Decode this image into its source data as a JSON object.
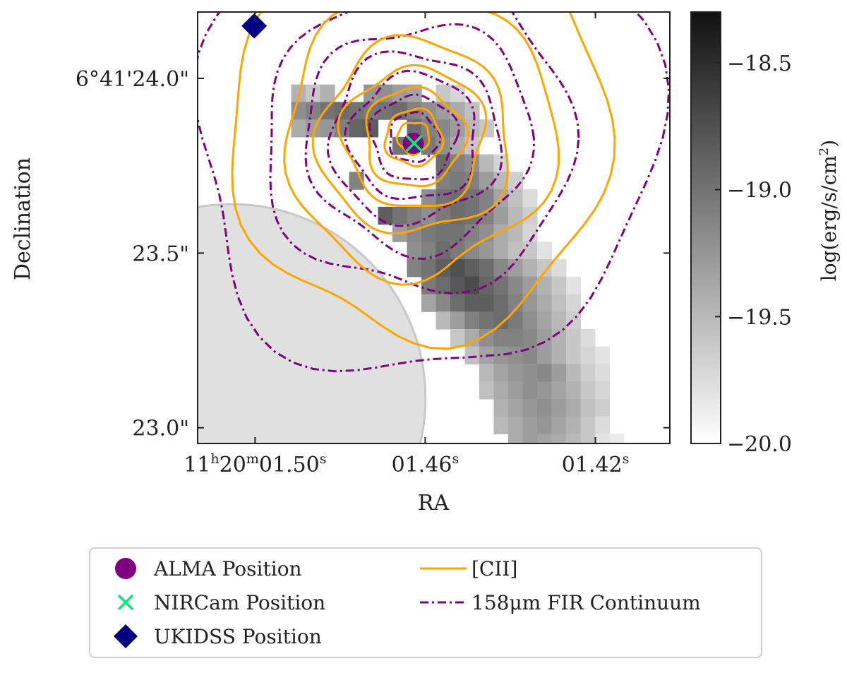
{
  "chart_data": {
    "type": "heatmap",
    "description_axes": {
      "xlabel": "RA",
      "ylabel": "Declination",
      "x_ticks": [
        {
          "value": 1.5,
          "prefix": "11",
          "h": "h",
          "mid": "20",
          "m": "m",
          "main": "01.50",
          "s": "s"
        },
        {
          "value": 1.46,
          "prefix": "",
          "h": "",
          "mid": "",
          "m": "",
          "main": "01.46",
          "s": "s"
        },
        {
          "value": 1.42,
          "prefix": "",
          "h": "",
          "mid": "",
          "m": "",
          "main": "01.42",
          "s": "s"
        }
      ],
      "y_ticks": [
        {
          "value": 24.0,
          "label": "6°41'24.0\""
        },
        {
          "value": 23.5,
          "label": "23.5\""
        },
        {
          "value": 23.0,
          "label": "23.0\""
        }
      ],
      "xlim": [
        1.5135,
        1.4025
      ],
      "ylim": [
        22.955,
        24.19
      ]
    },
    "colorbar": {
      "label_main": "log(erg/s/cm",
      "label_sup": "2",
      "label_end": ")",
      "range": [
        -20.0,
        -18.3
      ],
      "ticks": [
        {
          "value": -18.5,
          "label": "−18.5"
        },
        {
          "value": -19.0,
          "label": "−19.0"
        },
        {
          "value": -19.5,
          "label": "−19.5"
        },
        {
          "value": -20.0,
          "label": "−20.0"
        }
      ],
      "cmap": "gray_r"
    },
    "pixel_grid": {
      "x0": 1.4915,
      "y0": 23.9825,
      "dx": -0.0034,
      "dy": -0.05,
      "note_units": "RA seconds offset and Dec arcsec"
    },
    "pixels": [
      [
        0,
        0,
        -19.45
      ],
      [
        1,
        0,
        -19.6
      ],
      [
        2,
        0,
        -19.45
      ],
      [
        5,
        0,
        -19.25
      ],
      [
        6,
        0,
        -19.2
      ],
      [
        7,
        0,
        -19.3
      ],
      [
        8,
        0,
        -19.35
      ],
      [
        10,
        0,
        -19.6
      ],
      [
        11,
        0,
        -19.7
      ],
      [
        0,
        1,
        -19.2
      ],
      [
        1,
        1,
        -19.1
      ],
      [
        2,
        1,
        -19.0
      ],
      [
        3,
        1,
        -18.95
      ],
      [
        4,
        1,
        -19.0
      ],
      [
        5,
        1,
        -19.05
      ],
      [
        6,
        1,
        -19.0
      ],
      [
        7,
        1,
        -18.95
      ],
      [
        8,
        1,
        -19.1
      ],
      [
        9,
        1,
        -19.2
      ],
      [
        10,
        1,
        -19.3
      ],
      [
        11,
        1,
        -19.4
      ],
      [
        12,
        1,
        -19.55
      ],
      [
        0,
        2,
        -19.4
      ],
      [
        1,
        2,
        -19.3
      ],
      [
        2,
        2,
        -19.25
      ],
      [
        3,
        2,
        -19.1
      ],
      [
        4,
        2,
        -18.9
      ],
      [
        5,
        2,
        -18.85
      ],
      [
        8,
        2,
        -18.95
      ],
      [
        9,
        2,
        -19.1
      ],
      [
        10,
        2,
        -19.15
      ],
      [
        11,
        2,
        -19.3
      ],
      [
        12,
        2,
        -19.5
      ],
      [
        13,
        2,
        -19.6
      ],
      [
        7,
        3,
        -19.0
      ],
      [
        9,
        3,
        -19.05
      ],
      [
        10,
        3,
        -19.2
      ],
      [
        11,
        3,
        -19.4
      ],
      [
        12,
        3,
        -19.6
      ],
      [
        10,
        4,
        -18.95
      ],
      [
        11,
        4,
        -19.1
      ],
      [
        12,
        4,
        -19.2
      ],
      [
        13,
        4,
        -19.5
      ],
      [
        14,
        4,
        -19.7
      ],
      [
        4,
        5,
        -19.1
      ],
      [
        10,
        5,
        -19.1
      ],
      [
        11,
        5,
        -19.05
      ],
      [
        12,
        5,
        -19.1
      ],
      [
        13,
        5,
        -19.3
      ],
      [
        14,
        5,
        -19.5
      ],
      [
        15,
        5,
        -19.65
      ],
      [
        9,
        6,
        -19.2
      ],
      [
        10,
        6,
        -19.0
      ],
      [
        11,
        6,
        -18.95
      ],
      [
        12,
        6,
        -19.0
      ],
      [
        13,
        6,
        -19.1
      ],
      [
        14,
        6,
        -19.35
      ],
      [
        15,
        6,
        -19.55
      ],
      [
        16,
        6,
        -19.75
      ],
      [
        6,
        7,
        -18.85
      ],
      [
        7,
        7,
        -19.0
      ],
      [
        8,
        7,
        -19.1
      ],
      [
        9,
        7,
        -19.2
      ],
      [
        10,
        7,
        -19.05
      ],
      [
        11,
        7,
        -18.95
      ],
      [
        12,
        7,
        -19.0
      ],
      [
        13,
        7,
        -19.1
      ],
      [
        14,
        7,
        -19.3
      ],
      [
        15,
        7,
        -19.5
      ],
      [
        16,
        7,
        -19.65
      ],
      [
        7,
        8,
        -19.3
      ],
      [
        8,
        8,
        -19.15
      ],
      [
        9,
        8,
        -19.05
      ],
      [
        10,
        8,
        -19.0
      ],
      [
        11,
        8,
        -19.0
      ],
      [
        12,
        8,
        -19.1
      ],
      [
        13,
        8,
        -19.2
      ],
      [
        14,
        8,
        -19.4
      ],
      [
        15,
        8,
        -19.5
      ],
      [
        16,
        8,
        -19.7
      ],
      [
        8,
        9,
        -19.2
      ],
      [
        9,
        9,
        -19.1
      ],
      [
        10,
        9,
        -18.95
      ],
      [
        11,
        9,
        -19.05
      ],
      [
        12,
        9,
        -19.15
      ],
      [
        13,
        9,
        -19.25
      ],
      [
        14,
        9,
        -19.4
      ],
      [
        15,
        9,
        -19.55
      ],
      [
        16,
        9,
        -19.6
      ],
      [
        17,
        9,
        -19.8
      ],
      [
        8,
        10,
        -19.1
      ],
      [
        9,
        10,
        -19.0
      ],
      [
        10,
        10,
        -18.85
      ],
      [
        11,
        10,
        -18.75
      ],
      [
        12,
        10,
        -18.85
      ],
      [
        13,
        10,
        -18.95
      ],
      [
        14,
        10,
        -19.15
      ],
      [
        15,
        10,
        -19.3
      ],
      [
        16,
        10,
        -19.45
      ],
      [
        17,
        10,
        -19.6
      ],
      [
        18,
        10,
        -19.75
      ],
      [
        9,
        11,
        -19.05
      ],
      [
        10,
        11,
        -18.95
      ],
      [
        11,
        11,
        -18.8
      ],
      [
        12,
        11,
        -18.72
      ],
      [
        13,
        11,
        -18.9
      ],
      [
        14,
        11,
        -19.0
      ],
      [
        15,
        11,
        -19.15
      ],
      [
        16,
        11,
        -19.3
      ],
      [
        17,
        11,
        -19.45
      ],
      [
        18,
        11,
        -19.6
      ],
      [
        19,
        11,
        -19.8
      ],
      [
        9,
        12,
        -19.35
      ],
      [
        10,
        12,
        -19.15
      ],
      [
        11,
        12,
        -18.95
      ],
      [
        12,
        12,
        -18.85
      ],
      [
        13,
        12,
        -18.85
      ],
      [
        14,
        12,
        -18.95
      ],
      [
        15,
        12,
        -19.1
      ],
      [
        16,
        12,
        -19.25
      ],
      [
        17,
        12,
        -19.4
      ],
      [
        18,
        12,
        -19.55
      ],
      [
        19,
        12,
        -19.7
      ],
      [
        10,
        13,
        -19.5
      ],
      [
        11,
        13,
        -19.3
      ],
      [
        12,
        13,
        -19.1
      ],
      [
        13,
        13,
        -19.0
      ],
      [
        14,
        13,
        -18.95
      ],
      [
        15,
        13,
        -19.05
      ],
      [
        16,
        13,
        -19.2
      ],
      [
        17,
        13,
        -19.35
      ],
      [
        18,
        13,
        -19.5
      ],
      [
        19,
        13,
        -19.65
      ],
      [
        11,
        14,
        -19.6
      ],
      [
        12,
        14,
        -19.4
      ],
      [
        13,
        14,
        -19.2
      ],
      [
        14,
        14,
        -19.1
      ],
      [
        15,
        14,
        -19.1
      ],
      [
        16,
        14,
        -19.15
      ],
      [
        17,
        14,
        -19.3
      ],
      [
        18,
        14,
        -19.45
      ],
      [
        19,
        14,
        -19.6
      ],
      [
        20,
        14,
        -19.75
      ],
      [
        12,
        15,
        -19.55
      ],
      [
        13,
        15,
        -19.35
      ],
      [
        14,
        15,
        -19.25
      ],
      [
        15,
        15,
        -19.2
      ],
      [
        16,
        15,
        -19.15
      ],
      [
        17,
        15,
        -19.3
      ],
      [
        18,
        15,
        -19.45
      ],
      [
        19,
        15,
        -19.6
      ],
      [
        20,
        15,
        -19.7
      ],
      [
        21,
        15,
        -19.8
      ],
      [
        13,
        16,
        -19.5
      ],
      [
        14,
        16,
        -19.35
      ],
      [
        15,
        16,
        -19.25
      ],
      [
        16,
        16,
        -19.2
      ],
      [
        17,
        16,
        -19.15
      ],
      [
        18,
        16,
        -19.3
      ],
      [
        19,
        16,
        -19.5
      ],
      [
        20,
        16,
        -19.65
      ],
      [
        21,
        16,
        -19.75
      ],
      [
        13,
        17,
        -19.55
      ],
      [
        14,
        17,
        -19.4
      ],
      [
        15,
        17,
        -19.3
      ],
      [
        16,
        17,
        -19.2
      ],
      [
        17,
        17,
        -19.25
      ],
      [
        18,
        17,
        -19.35
      ],
      [
        19,
        17,
        -19.45
      ],
      [
        20,
        17,
        -19.6
      ],
      [
        21,
        17,
        -19.7
      ],
      [
        14,
        18,
        -19.45
      ],
      [
        15,
        18,
        -19.35
      ],
      [
        16,
        18,
        -19.25
      ],
      [
        17,
        18,
        -19.2
      ],
      [
        18,
        18,
        -19.3
      ],
      [
        19,
        18,
        -19.4
      ],
      [
        20,
        18,
        -19.55
      ],
      [
        21,
        18,
        -19.65
      ],
      [
        14,
        19,
        -19.5
      ],
      [
        15,
        19,
        -19.4
      ],
      [
        16,
        19,
        -19.3
      ],
      [
        17,
        19,
        -19.25
      ],
      [
        18,
        19,
        -19.35
      ],
      [
        19,
        19,
        -19.45
      ],
      [
        20,
        19,
        -19.6
      ],
      [
        21,
        19,
        -19.75
      ],
      [
        15,
        20,
        -19.4
      ],
      [
        16,
        20,
        -19.3
      ],
      [
        17,
        20,
        -19.35
      ],
      [
        18,
        20,
        -19.4
      ],
      [
        19,
        20,
        -19.5
      ],
      [
        20,
        20,
        -19.6
      ],
      [
        21,
        20,
        -19.8
      ],
      [
        22,
        20,
        -19.85
      ],
      [
        15,
        21,
        -19.35
      ],
      [
        16,
        21,
        -19.2
      ],
      [
        17,
        21,
        -19.35
      ],
      [
        18,
        21,
        -19.5
      ],
      [
        19,
        21,
        -19.6
      ],
      [
        20,
        21,
        -19.7
      ],
      [
        21,
        21,
        -19.8
      ],
      [
        16,
        22,
        -19.5
      ],
      [
        17,
        22,
        -19.45
      ],
      [
        18,
        22,
        -19.55
      ],
      [
        19,
        22,
        -19.7
      ],
      [
        20,
        22,
        -19.8
      ],
      [
        17,
        23,
        -19.6
      ],
      [
        18,
        23,
        -19.5
      ],
      [
        19,
        23,
        -19.6
      ],
      [
        20,
        23,
        -19.65
      ],
      [
        21,
        23,
        -19.7
      ],
      [
        17,
        24,
        -19.85
      ],
      [
        18,
        24,
        -19.75
      ],
      [
        19,
        24,
        -19.7
      ],
      [
        21,
        24,
        -19.8
      ],
      [
        22,
        24,
        -19.75
      ]
    ],
    "markers": [
      {
        "name": "ALMA Position",
        "x": 1.4628,
        "y": 23.814,
        "shape": "circle",
        "color": "#800080"
      },
      {
        "name": "NIRCam Position",
        "x": 1.4626,
        "y": 23.814,
        "shape": "x",
        "color": "#00ee77"
      },
      {
        "name": "UKIDSS Position",
        "x": 1.5002,
        "y": 24.15,
        "shape": "diamond",
        "color": "#000080"
      }
    ],
    "beam": {
      "x": 1.5055,
      "y": 23.085,
      "radius_arcsec": 0.075,
      "color": "#e0e0e0"
    },
    "contours": {
      "center": {
        "x": 1.4628,
        "y": 23.83
      },
      "cii": {
        "name": "[CII]",
        "color": "#ffa500",
        "style": "solid",
        "levels_radius_arcsec": [
          0.52,
          0.37,
          0.27,
          0.2,
          0.14,
          0.08,
          0.045
        ],
        "stretch_y": [
          1.08,
          1.05,
          1.02,
          1.0,
          1.0,
          1.0,
          1.0
        ]
      },
      "fir": {
        "name": "158μm FIR Continuum",
        "color": "#800080",
        "style": "dashdot",
        "levels_radius_arcsec": [
          0.63,
          0.42,
          0.31,
          0.24,
          0.18,
          0.12,
          0.07
        ],
        "stretch_y": [
          1.08,
          1.05,
          1.02,
          1.0,
          1.0,
          1.0,
          1.0
        ]
      }
    }
  },
  "legend": {
    "items": [
      {
        "label": "ALMA Position",
        "marker": "circle",
        "color": "#800080"
      },
      {
        "label": "NIRCam Position",
        "marker": "x",
        "color": "#00ee77"
      },
      {
        "label": "UKIDSS Position",
        "marker": "diamond",
        "color": "#000080"
      },
      {
        "label": "[CII]",
        "marker": "line-solid",
        "color": "#ffa500"
      },
      {
        "label": "158μm FIR Continuum",
        "marker": "line-dashdot",
        "color": "#800080"
      }
    ]
  }
}
